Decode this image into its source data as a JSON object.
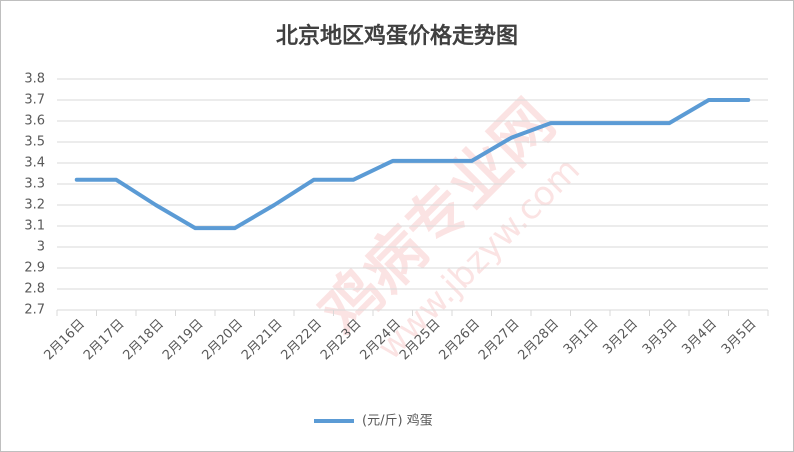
{
  "chart_data": {
    "type": "line",
    "title": "北京地区鸡蛋价格走势图",
    "watermark": [
      "鸡病专业网",
      "www.jbzyw.com"
    ],
    "categories": [
      "2月16日",
      "2月17日",
      "2月18日",
      "2月19日",
      "2月20日",
      "2月21日",
      "2月22日",
      "2月23日",
      "2月24日",
      "2月25日",
      "2月26日",
      "2月27日",
      "2月28日",
      "3月1日",
      "3月2日",
      "3月3日",
      "3月4日",
      "3月5日"
    ],
    "series": [
      {
        "name": "(元/斤) 鸡蛋",
        "color": "#5b9bd5",
        "values": [
          3.32,
          3.32,
          3.2,
          3.09,
          3.09,
          3.2,
          3.32,
          3.32,
          3.41,
          3.41,
          3.41,
          3.52,
          3.59,
          3.59,
          3.59,
          3.59,
          3.7,
          3.7
        ]
      }
    ],
    "ylim": [
      2.7,
      3.8
    ],
    "yticks": [
      2.7,
      2.8,
      2.9,
      3,
      3.1,
      3.2,
      3.3,
      3.4,
      3.5,
      3.6,
      3.7,
      3.8
    ],
    "grid": true,
    "legend": "bottom"
  }
}
